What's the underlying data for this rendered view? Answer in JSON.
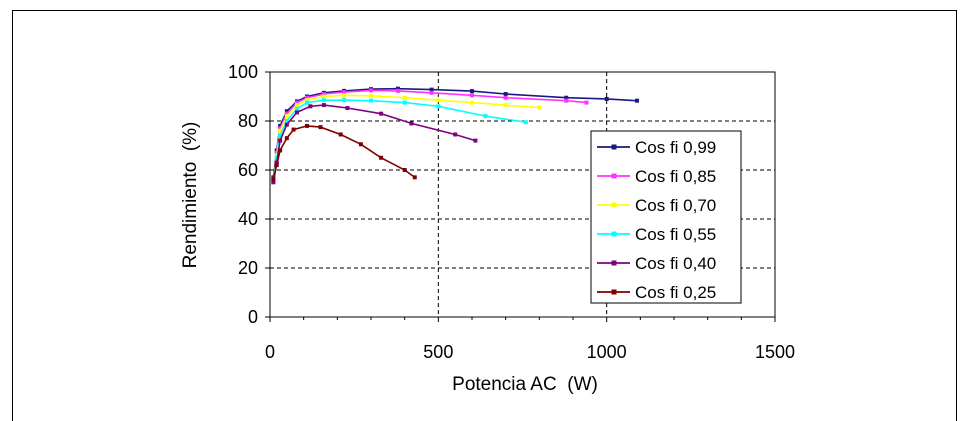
{
  "chart_data": {
    "type": "line",
    "title": "",
    "xlabel": "Potencia AC  (W)",
    "ylabel": "Rendimiento  (%)",
    "xlim": [
      0,
      1500
    ],
    "ylim": [
      0,
      100
    ],
    "x_ticks": [
      0,
      500,
      1000,
      1500
    ],
    "y_ticks": [
      0,
      20,
      40,
      60,
      80,
      100
    ],
    "x_tick_labels": [
      "0",
      "500",
      "1000",
      "1500"
    ],
    "y_tick_labels": [
      "0",
      "20",
      "40",
      "60",
      "80",
      "100"
    ],
    "grid": "dashed, vertical lines at 500 and 1000, horizontal lines at 20, 40, 60, 80",
    "legend_position": "right",
    "series": [
      {
        "name": "Cos fi 0,99",
        "color": "#1a1a80",
        "points": [
          [
            10,
            57
          ],
          [
            20,
            68
          ],
          [
            30,
            78
          ],
          [
            50,
            84
          ],
          [
            80,
            88
          ],
          [
            110,
            90
          ],
          [
            160,
            91.5
          ],
          [
            220,
            92.3
          ],
          [
            300,
            93
          ],
          [
            380,
            93.2
          ],
          [
            480,
            92.8
          ],
          [
            600,
            92.2
          ],
          [
            700,
            91
          ],
          [
            880,
            89.5
          ],
          [
            1000,
            89
          ],
          [
            1090,
            88.3
          ]
        ]
      },
      {
        "name": "Cos fi 0,85",
        "color": "#ff33ff",
        "points": [
          [
            10,
            55
          ],
          [
            20,
            67
          ],
          [
            30,
            77
          ],
          [
            50,
            83
          ],
          [
            80,
            87.5
          ],
          [
            110,
            89.5
          ],
          [
            160,
            91
          ],
          [
            220,
            91.8
          ],
          [
            300,
            92.5
          ],
          [
            380,
            92.3
          ],
          [
            480,
            91.5
          ],
          [
            600,
            90.5
          ],
          [
            700,
            89.5
          ],
          [
            880,
            88.3
          ],
          [
            940,
            87.5
          ]
        ]
      },
      {
        "name": "Cos fi 0,70",
        "color": "#ffff00",
        "points": [
          [
            10,
            55
          ],
          [
            20,
            66
          ],
          [
            30,
            76
          ],
          [
            50,
            82
          ],
          [
            80,
            86.5
          ],
          [
            110,
            88.5
          ],
          [
            160,
            90
          ],
          [
            220,
            90.5
          ],
          [
            300,
            90.3
          ],
          [
            400,
            89.5
          ],
          [
            500,
            88.5
          ],
          [
            600,
            87.5
          ],
          [
            700,
            86.5
          ],
          [
            800,
            85.5
          ]
        ]
      },
      {
        "name": "Cos fi 0,55",
        "color": "#00ffff",
        "points": [
          [
            10,
            55
          ],
          [
            20,
            65
          ],
          [
            30,
            74
          ],
          [
            50,
            80
          ],
          [
            80,
            85
          ],
          [
            110,
            87.5
          ],
          [
            160,
            88.5
          ],
          [
            220,
            88.5
          ],
          [
            300,
            88.3
          ],
          [
            400,
            87.5
          ],
          [
            500,
            86
          ],
          [
            640,
            82
          ],
          [
            760,
            79.5
          ]
        ]
      },
      {
        "name": "Cos fi 0,40",
        "color": "#800080",
        "points": [
          [
            10,
            55
          ],
          [
            20,
            63
          ],
          [
            30,
            72
          ],
          [
            50,
            78.5
          ],
          [
            80,
            83.5
          ],
          [
            120,
            86
          ],
          [
            160,
            86.5
          ],
          [
            230,
            85.3
          ],
          [
            330,
            83
          ],
          [
            420,
            79
          ],
          [
            550,
            74.5
          ],
          [
            610,
            72
          ]
        ]
      },
      {
        "name": "Cos fi 0,25",
        "color": "#800000",
        "points": [
          [
            10,
            56
          ],
          [
            20,
            62
          ],
          [
            30,
            68
          ],
          [
            50,
            73
          ],
          [
            70,
            76.5
          ],
          [
            110,
            78
          ],
          [
            150,
            77.5
          ],
          [
            210,
            74.5
          ],
          [
            270,
            70.5
          ],
          [
            330,
            65
          ],
          [
            400,
            60
          ],
          [
            430,
            57
          ]
        ]
      }
    ]
  }
}
